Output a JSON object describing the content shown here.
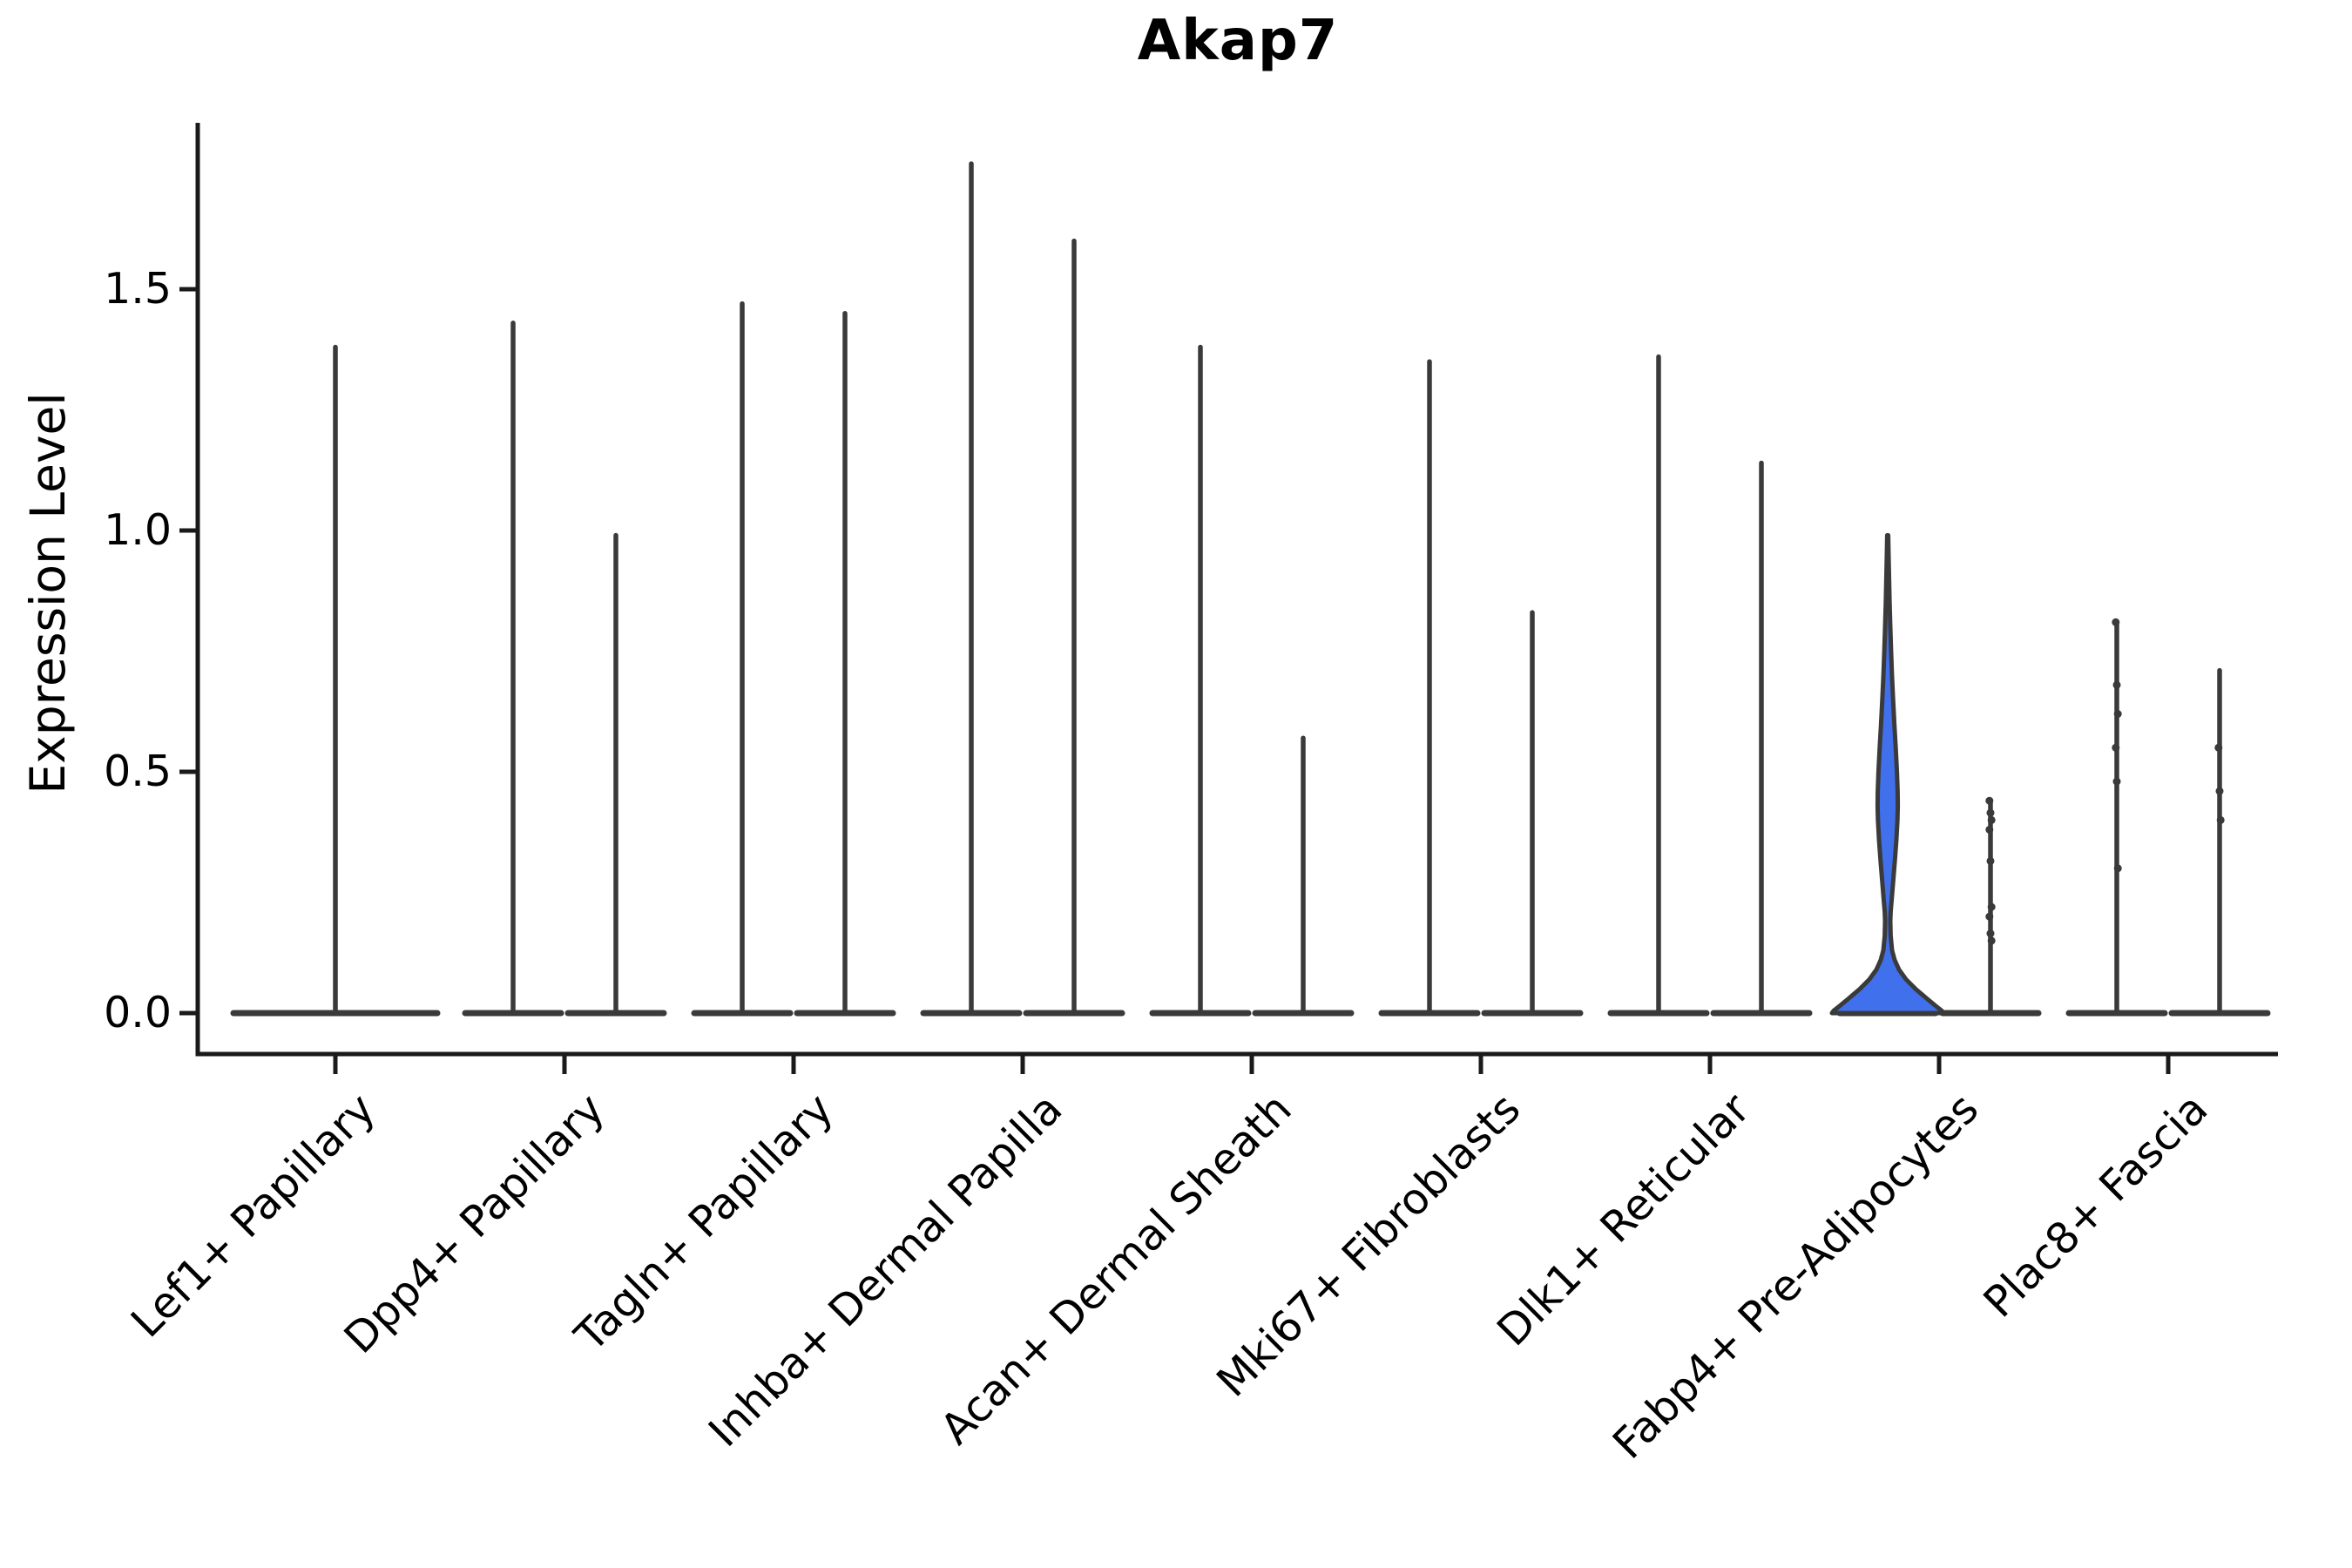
{
  "title": "Akap7",
  "y_axis": {
    "label": "Expression Level",
    "tick_labels": [
      "0.0",
      "0.5",
      "1.0",
      "1.5"
    ]
  },
  "colors": {
    "violin_stroke": "#3a3a3a",
    "axis": "#1a1a1a",
    "highlight_fill": "#4070ec"
  },
  "chart_data": {
    "type": "violin",
    "title": "Akap7",
    "xlabel": "",
    "ylabel": "Expression Level",
    "ylim": [
      0,
      1.85
    ],
    "yticks": [
      0,
      0.5,
      1.0,
      1.5
    ],
    "grid": false,
    "legend": "none",
    "categories": [
      "Lef1+ Papillary",
      "Dpp4+ Papillary",
      "Tagln+ Papillary",
      "Inhba+ Dermal Papilla",
      "Acan+ Dermal Sheath",
      "Mki67+ Fibroblasts",
      "Dlk1+ Reticular",
      "Fabp4+ Pre-Adipocytes",
      "Plac8+ Fascia"
    ],
    "violins": [
      {
        "category_index": 0,
        "position": "center",
        "span": "full",
        "max": 1.38,
        "style": "spike",
        "dots": []
      },
      {
        "category_index": 1,
        "position": "left",
        "span": "half",
        "max": 1.43,
        "style": "spike",
        "dots": []
      },
      {
        "category_index": 1,
        "position": "right",
        "span": "half",
        "max": 0.99,
        "style": "spike",
        "dots": []
      },
      {
        "category_index": 2,
        "position": "left",
        "span": "half",
        "max": 1.47,
        "style": "spike",
        "dots": []
      },
      {
        "category_index": 2,
        "position": "right",
        "span": "half",
        "max": 1.45,
        "style": "spike",
        "dots": []
      },
      {
        "category_index": 3,
        "position": "left",
        "span": "half",
        "max": 1.76,
        "style": "spike",
        "dots": []
      },
      {
        "category_index": 3,
        "position": "right",
        "span": "half",
        "max": 1.6,
        "style": "spike",
        "dots": []
      },
      {
        "category_index": 4,
        "position": "left",
        "span": "half",
        "max": 1.38,
        "style": "spike",
        "dots": []
      },
      {
        "category_index": 4,
        "position": "right",
        "span": "half",
        "max": 0.57,
        "style": "spike",
        "dots": []
      },
      {
        "category_index": 5,
        "position": "left",
        "span": "half",
        "max": 1.35,
        "style": "spike",
        "dots": []
      },
      {
        "category_index": 5,
        "position": "right",
        "span": "half",
        "max": 0.83,
        "style": "spike",
        "dots": []
      },
      {
        "category_index": 6,
        "position": "left",
        "span": "half",
        "max": 1.36,
        "style": "spike",
        "dots": []
      },
      {
        "category_index": 6,
        "position": "right",
        "span": "half",
        "max": 1.14,
        "style": "spike",
        "dots": []
      },
      {
        "category_index": 7,
        "position": "left",
        "span": "half",
        "max": 0.99,
        "style": "filled-violin",
        "fill": "#4070ec",
        "profile": [
          [
            0.99,
            0.6
          ],
          [
            0.95,
            1.0
          ],
          [
            0.9,
            1.6
          ],
          [
            0.85,
            2.2
          ],
          [
            0.8,
            3.0
          ],
          [
            0.75,
            3.9
          ],
          [
            0.7,
            4.9
          ],
          [
            0.65,
            6.2
          ],
          [
            0.6,
            7.6
          ],
          [
            0.55,
            9.2
          ],
          [
            0.5,
            10.6
          ],
          [
            0.46,
            11.4
          ],
          [
            0.43,
            11.6
          ],
          [
            0.4,
            11.2
          ],
          [
            0.36,
            10.0
          ],
          [
            0.32,
            8.4
          ],
          [
            0.28,
            6.6
          ],
          [
            0.24,
            4.8
          ],
          [
            0.21,
            3.4
          ],
          [
            0.19,
            3.0
          ],
          [
            0.16,
            3.4
          ],
          [
            0.13,
            5.0
          ],
          [
            0.11,
            8.0
          ],
          [
            0.09,
            13.0
          ],
          [
            0.07,
            21.0
          ],
          [
            0.05,
            32.0
          ],
          [
            0.03,
            45.0
          ],
          [
            0.015,
            55.0
          ],
          [
            0.005,
            62.0
          ],
          [
            0.0,
            64.0
          ]
        ],
        "dots": []
      },
      {
        "category_index": 7,
        "position": "right",
        "span": "half",
        "max": 0.44,
        "style": "spike",
        "dots": [
          0.44,
          0.415,
          0.4,
          0.38,
          0.315,
          0.22,
          0.2,
          0.165,
          0.15
        ]
      },
      {
        "category_index": 8,
        "position": "left",
        "span": "half",
        "max": 0.81,
        "style": "spike",
        "dots": [
          0.81,
          0.68,
          0.62,
          0.55,
          0.48,
          0.3
        ]
      },
      {
        "category_index": 8,
        "position": "right",
        "span": "half",
        "max": 0.71,
        "style": "spike",
        "dots": [
          0.55,
          0.46,
          0.4
        ]
      }
    ]
  }
}
